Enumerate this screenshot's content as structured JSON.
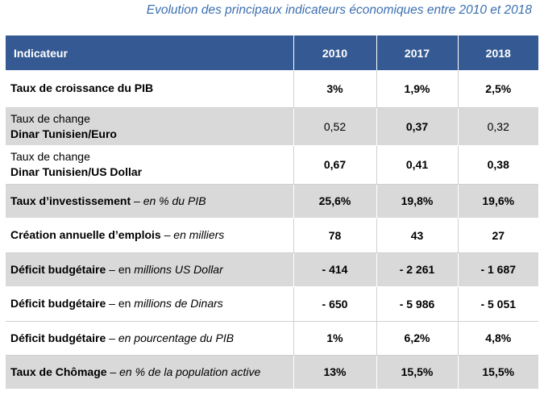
{
  "title": "Evolution des principaux indicateurs économiques entre 2010 et 2018",
  "table": {
    "header": {
      "indicator": "Indicateur",
      "years": [
        "2010",
        "2017",
        "2018"
      ]
    },
    "rows": [
      {
        "label_bold": "Taux de croissance du PIB",
        "label_sep": "",
        "label_italic": "",
        "values": [
          "3%",
          "1,9%",
          "2,5%"
        ]
      },
      {
        "label_plain": "Taux de change",
        "label_bold": "Dinar Tunisien/Euro",
        "values": [
          "0,52",
          "0,37",
          "0,32"
        ]
      },
      {
        "label_plain": "Taux de change",
        "label_bold": "Dinar Tunisien/US Dollar",
        "values": [
          "0,67",
          "0,41",
          "0,38"
        ]
      },
      {
        "label_bold": "Taux d’investissement",
        "label_sep": " – ",
        "label_italic": "en % du PIB",
        "values": [
          "25,6%",
          "19,8%",
          "19,6%"
        ]
      },
      {
        "label_bold": "Création annuelle d’emplois",
        "label_sep": " – ",
        "label_italic": "en milliers",
        "values": [
          "78",
          "43",
          "27"
        ]
      },
      {
        "label_bold": "Déficit budgétaire",
        "label_sep": " – en ",
        "label_italic": "millions US Dollar",
        "values": [
          "- 414",
          "- 2 261",
          "- 1 687"
        ]
      },
      {
        "label_bold": "Déficit budgétaire",
        "label_sep": " – en ",
        "label_italic": "millions de Dinars",
        "values": [
          "- 650",
          "- 5 986",
          "- 5 051"
        ]
      },
      {
        "label_bold": "Déficit budgétaire",
        "label_sep": " – ",
        "label_italic": "en pourcentage du PIB",
        "values": [
          "1%",
          "6,2%",
          "4,8%"
        ]
      },
      {
        "label_bold": "Taux de Chômage",
        "label_sep": " – ",
        "label_italic": "en % de la population active",
        "values": [
          "13%",
          "15,5%",
          "15,5%"
        ]
      }
    ]
  },
  "colors": {
    "title": "#3b6fb0",
    "header_bg": "#355a93",
    "header_text": "#ffffff",
    "row_grey": "#d9d9d9",
    "row_white": "#ffffff"
  }
}
